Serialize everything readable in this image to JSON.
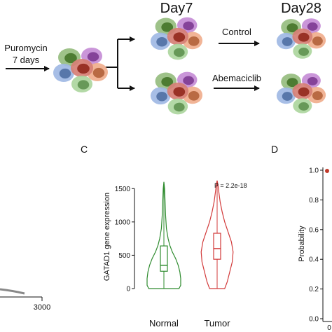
{
  "workflow": {
    "day7_label": "Day7",
    "day28_label": "Day28",
    "treatment_label_line1": "Puromycin",
    "treatment_label_line2": "7 days",
    "control_label": "Control",
    "drug_label": "Abemaciclib",
    "cell_colors": {
      "green": "#5e9a3a",
      "purple": "#a54fc0",
      "red": "#c03a2a",
      "orange": "#e8834f",
      "blue": "#6b93d6",
      "lightgreen": "#7fc06a"
    }
  },
  "panels": {
    "c_label": "C",
    "d_label": "D"
  },
  "left_partial": {
    "tick_label": "3000"
  },
  "chart_data": [
    {
      "type": "violin",
      "title": "",
      "ylabel": "GATAD1 gene expression",
      "xlabel": "",
      "categories": [
        "Normal",
        "Tumor"
      ],
      "ylim": [
        0,
        1650
      ],
      "yticks": [
        "0",
        "500",
        "1000",
        "1500"
      ],
      "yticks_values": [
        0,
        500,
        1000,
        1500
      ],
      "annotation": "P = 2.2e-18",
      "series": [
        {
          "category": "Normal",
          "color": "#2e8b2e",
          "min": 0,
          "q1": 260,
          "median": 350,
          "q3": 640,
          "max": 1600
        },
        {
          "category": "Tumor",
          "color": "#d23a3a",
          "min": 0,
          "q1": 440,
          "median": 600,
          "q3": 830,
          "max": 1620
        }
      ]
    },
    {
      "type": "line",
      "ylabel": "Probability",
      "yticks": [
        "0.0",
        "0.2",
        "0.4",
        "0.6",
        "0.8",
        "1.0"
      ],
      "yticks_values": [
        0.0,
        0.2,
        0.4,
        0.6,
        0.8,
        1.0
      ],
      "ylim": [
        0,
        1.0
      ],
      "x_tick_partial": "0"
    }
  ]
}
